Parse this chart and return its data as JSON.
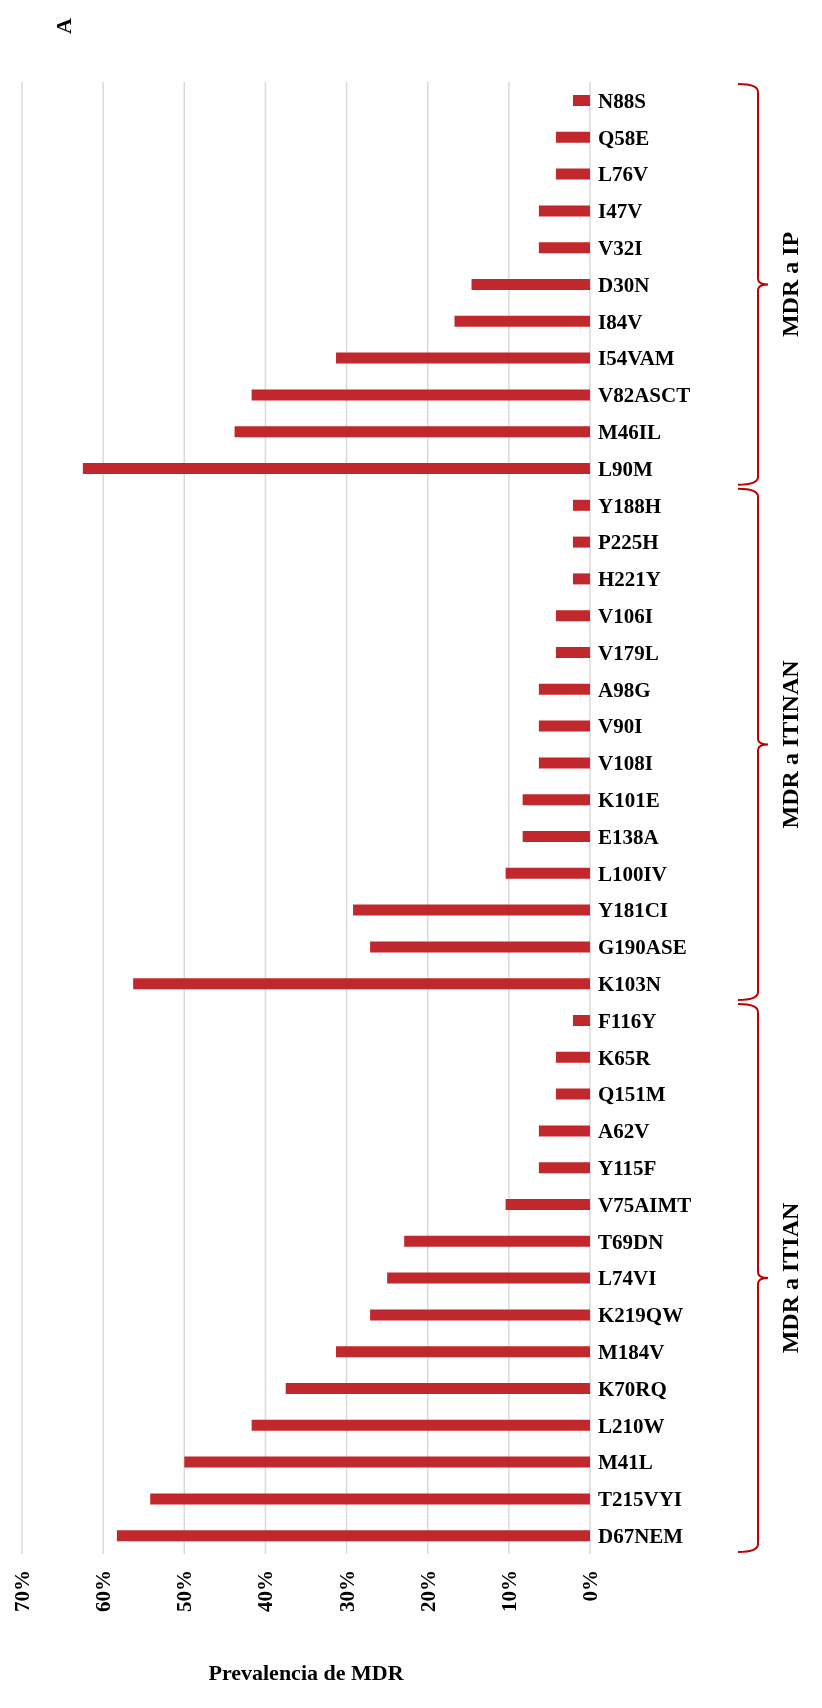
{
  "chart_data": {
    "type": "bar",
    "orientation": "horizontal",
    "title": "A",
    "xlabel": "Prevalencia de MDR",
    "categories": [
      "N88S",
      "Q58E",
      "L76V",
      "I47V",
      "V32I",
      "D30N",
      "I84V",
      "I54VAM",
      "V82ASCT",
      "M46IL",
      "L90M",
      "Y188H",
      "P225H",
      "H221Y",
      "V106I",
      "V179L",
      "A98G",
      "V90I",
      "V108I",
      "K101E",
      "E138A",
      "L100IV",
      "Y181CI",
      "G190ASE",
      "K103N",
      "F116Y",
      "K65R",
      "Q151M",
      "A62V",
      "Y115F",
      "V75AIMT",
      "T69DN",
      "L74VI",
      "K219QW",
      "M184V",
      "K70RQ",
      "L210W",
      "M41L",
      "T215VYI",
      "D67NEM"
    ],
    "values": [
      2.1,
      4.2,
      4.2,
      6.3,
      6.3,
      14.6,
      16.7,
      31.3,
      41.7,
      43.8,
      62.5,
      2.1,
      2.1,
      2.1,
      4.2,
      4.2,
      6.3,
      6.3,
      6.3,
      8.3,
      8.3,
      10.4,
      29.2,
      27.1,
      56.3,
      2.1,
      4.2,
      4.2,
      6.3,
      6.3,
      10.4,
      22.9,
      25.0,
      27.1,
      31.3,
      37.5,
      41.7,
      50.0,
      54.2,
      58.3
    ],
    "color": "#c0282d",
    "xlim": [
      70,
      0
    ],
    "xticks": [
      {
        "value": 70,
        "label": "70%"
      },
      {
        "value": 60,
        "label": "60%"
      },
      {
        "value": 50,
        "label": "50%"
      },
      {
        "value": 40,
        "label": "40%"
      },
      {
        "value": 30,
        "label": "30%"
      },
      {
        "value": 20,
        "label": "20%"
      },
      {
        "value": 10,
        "label": "10%"
      },
      {
        "value": 0,
        "label": "0%"
      }
    ],
    "grid": "x",
    "legend": false,
    "annotations": [
      "MDR a IP",
      "MDR a ITINAN",
      "MDR a ITIAN"
    ]
  }
}
